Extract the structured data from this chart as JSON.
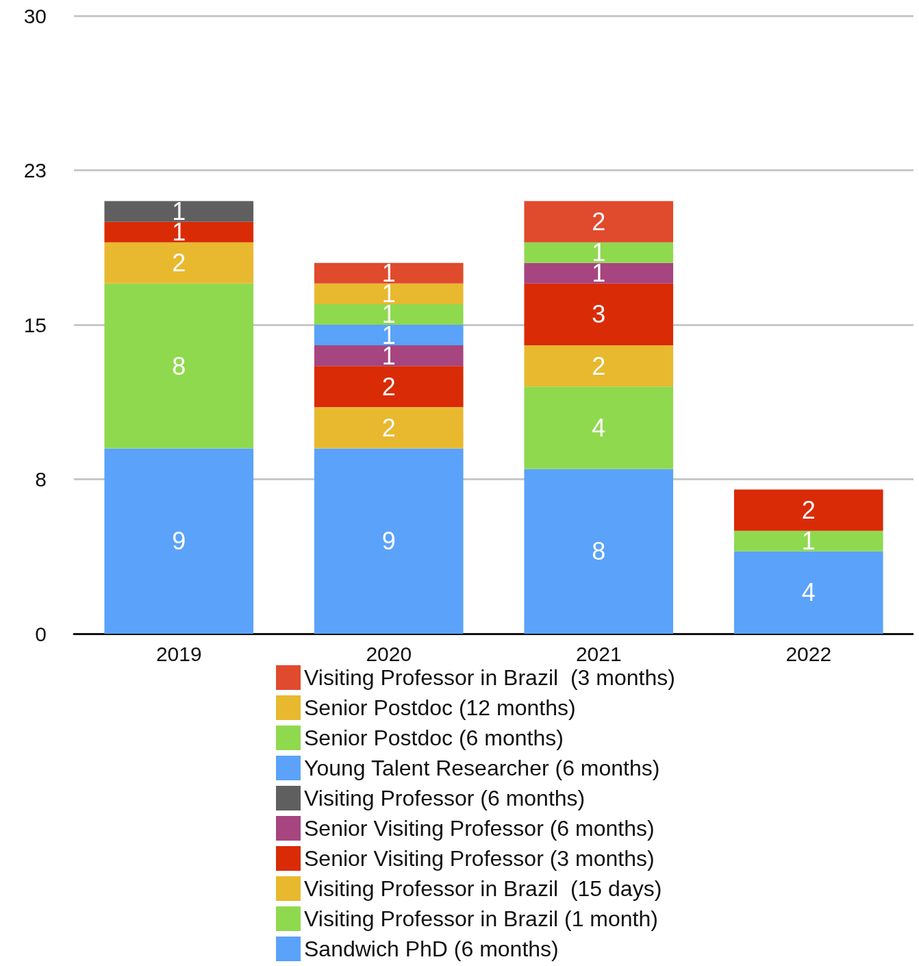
{
  "chart_data": {
    "type": "bar",
    "stacked": true,
    "categories": [
      "2019",
      "2020",
      "2021",
      "2022"
    ],
    "series": [
      {
        "name": "Sandwich PhD (6 months)",
        "color": "#5aa2fa",
        "values": [
          9,
          9,
          8,
          4
        ]
      },
      {
        "name": "Visiting Professor in Brazil (1 month)",
        "color": "#8fd94f",
        "values": [
          8,
          null,
          4,
          1
        ]
      },
      {
        "name": "Visiting Professor in Brazil  (15 days)",
        "color": "#e8b92f",
        "values": [
          2,
          2,
          2,
          null
        ]
      },
      {
        "name": "Senior Visiting Professor (3 months)",
        "color": "#d92b06",
        "values": [
          1,
          2,
          3,
          2
        ]
      },
      {
        "name": "Senior Visiting Professor (6 months)",
        "color": "#a6457f",
        "values": [
          null,
          1,
          1,
          null
        ]
      },
      {
        "name": "Visiting Professor (6 months)",
        "color": "#5f5f5f",
        "values": [
          1,
          null,
          null,
          null
        ]
      },
      {
        "name": "Young Talent Researcher (6 months)",
        "color": "#5aa2fa",
        "values": [
          null,
          1,
          null,
          null
        ]
      },
      {
        "name": "Senior Postdoc (6 months)",
        "color": "#8fd94f",
        "values": [
          null,
          1,
          1,
          null
        ]
      },
      {
        "name": "Senior Postdoc (12 months)",
        "color": "#e8b92f",
        "values": [
          null,
          1,
          null,
          null
        ]
      },
      {
        "name": "Visiting Professor in Brazil  (3 months)",
        "color": "#e04a2d",
        "values": [
          null,
          1,
          2,
          null
        ]
      }
    ],
    "ylim": [
      0,
      30
    ],
    "yticks": [
      0,
      {
        "value": 7.5,
        "label": "8"
      },
      15,
      {
        "value": 22.5,
        "label": "23"
      },
      30
    ],
    "grid": "y",
    "legend": "bottom",
    "data_labels": true
  }
}
